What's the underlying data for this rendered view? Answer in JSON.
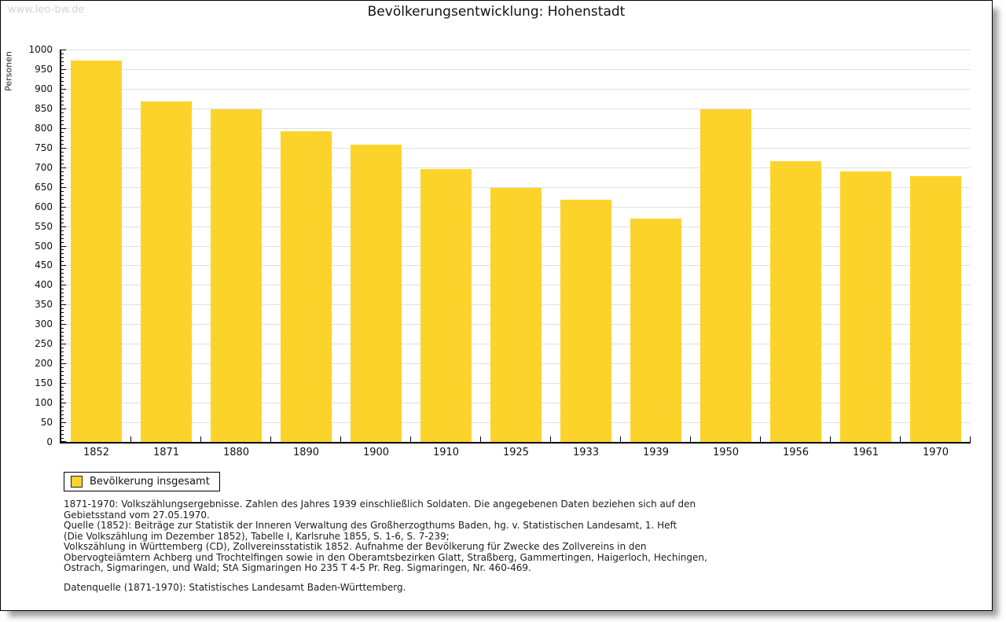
{
  "watermark": "www.leo-bw.de",
  "chart_data": {
    "type": "bar",
    "title": "Bevölkerungsentwicklung: Hohenstadt",
    "xlabel": "",
    "ylabel": "Personen",
    "ylim": [
      0,
      1000
    ],
    "ytick_step": 50,
    "minor_tick_step": 10,
    "grid": true,
    "bar_color": "#FCD32B",
    "legend_position": "bottom-left",
    "categories": [
      "1852",
      "1871",
      "1880",
      "1890",
      "1900",
      "1910",
      "1925",
      "1933",
      "1939",
      "1950",
      "1956",
      "1961",
      "1970"
    ],
    "series": [
      {
        "name": "Bevölkerung insgesamt",
        "values": [
          971,
          867,
          848,
          791,
          757,
          695,
          648,
          617,
          570,
          848,
          716,
          689,
          677
        ]
      }
    ]
  },
  "legend": {
    "label": "Bevölkerung insgesamt",
    "swatch_color": "#FCD32B"
  },
  "notes": {
    "lines": [
      "1871-1970: Volkszählungsergebnisse. Zahlen des Jahres 1939 einschließlich Soldaten. Die angegebenen Daten beziehen sich auf den",
      "Gebietsstand vom 27.05.1970.",
      "Quelle (1852): Beiträge zur Statistik der Inneren Verwaltung des Großherzogthums Baden, hg. v. Statistischen Landesamt, 1. Heft",
      "(Die Volkszählung im Dezember 1852), Tabelle I, Karlsruhe 1855, S. 1-6, S. 7-239;",
      "Volkszählung in Württemberg (CD), Zollvereinsstatistik 1852. Aufnahme der Bevölkerung für Zwecke des Zollvereins in den",
      "Obervogteiämtern Achberg und Trochtelfingen sowie in den Oberamtsbezirken Glatt, Straßberg, Gammertingen, Haigerloch, Hechingen,",
      "Ostrach, Sigmaringen, und Wald; StA Sigmaringen Ho 235 T 4-5 Pr. Reg. Sigmaringen, Nr. 460-469."
    ],
    "datasource": "Datenquelle (1871-1970): Statistisches Landesamt Baden-Württemberg."
  }
}
